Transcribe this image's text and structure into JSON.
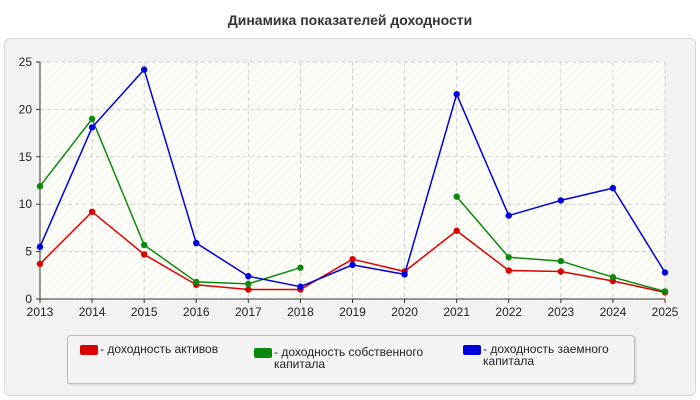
{
  "chart_data": {
    "type": "line",
    "title": "Динамика показателей доходности",
    "categories": [
      "2013",
      "2014",
      "2015",
      "2016",
      "2017",
      "2018",
      "2019",
      "2020",
      "2021",
      "2022",
      "2023",
      "2024",
      "2025"
    ],
    "yticks": [
      "0",
      "5",
      "10",
      "15",
      "20",
      "25"
    ],
    "ylim": [
      0,
      25
    ],
    "grid": true,
    "legend_position": "bottom",
    "series": [
      {
        "name": "- доходность активов",
        "color": "#dd0000",
        "values": [
          3.7,
          9.2,
          4.7,
          1.5,
          1.0,
          1.0,
          4.2,
          2.9,
          7.2,
          3.0,
          2.9,
          1.9,
          0.7
        ]
      },
      {
        "name": "- доходность собственного капитала",
        "color": "#0a8a0a",
        "values": [
          11.9,
          19.0,
          5.7,
          1.8,
          1.6,
          3.3,
          null,
          null,
          10.8,
          4.4,
          4.0,
          2.3,
          0.8
        ]
      },
      {
        "name": "- доходность заемного капитала",
        "color": "#0000dd",
        "values": [
          5.5,
          18.1,
          24.2,
          5.9,
          2.4,
          1.3,
          3.6,
          2.6,
          21.6,
          8.8,
          10.4,
          11.7,
          2.8
        ]
      }
    ]
  }
}
